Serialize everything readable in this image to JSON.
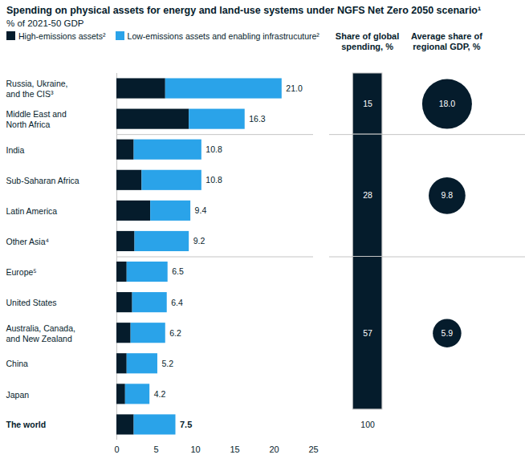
{
  "chart_data": {
    "type": "bar",
    "orientation": "horizontal",
    "stacked": true,
    "title": "Spending on physical assets for energy and land-use systems under NGFS Net Zero 2050 scenario¹",
    "subtitle": "% of 2021-50 GDP",
    "categories": [
      "Russia, Ukraine, and the CIS³",
      "Middle East and North Africa",
      "India",
      "Sub-Saharan Africa",
      "Latin America",
      "Other Asia⁴",
      "Europe⁵",
      "United States",
      "Australia, Canada, and New Zealand",
      "China",
      "Japan",
      "The world"
    ],
    "series": [
      {
        "name": "High-emissions assets²",
        "color": "#051c2c",
        "values": [
          6.2,
          9.2,
          2.2,
          3.2,
          4.3,
          2.3,
          1.3,
          2.0,
          1.8,
          1.3,
          1.1,
          2.2
        ]
      },
      {
        "name": "Low-emissions assets and enabling infrastrucuture²",
        "color": "#2aa3e9",
        "values": [
          14.8,
          7.1,
          8.6,
          7.6,
          5.1,
          6.9,
          5.2,
          4.4,
          4.4,
          3.9,
          3.1,
          5.3
        ]
      }
    ],
    "totals": [
      21.0,
      16.3,
      10.8,
      10.8,
      9.4,
      9.2,
      6.5,
      6.4,
      6.2,
      5.2,
      4.2,
      7.5
    ],
    "total_labels": [
      "21.0",
      "16.3",
      "10.8",
      "10.8",
      "9.4",
      "9.2",
      "6.5",
      "6.4",
      "6.2",
      "5.2",
      "4.2",
      "7.5"
    ],
    "xlim": [
      0,
      25
    ],
    "xticks": [
      0,
      5,
      10,
      15,
      20,
      25
    ],
    "grid": false,
    "legend": "top",
    "group_headers": {
      "share": "Share of global spending, %",
      "gdp": "Average share of regional GDP, %"
    },
    "groups": [
      {
        "members": [
          "Russia, Ukraine, and the CIS³",
          "Middle East and North Africa"
        ],
        "share_of_global_spending": 15,
        "average_share_of_regional_gdp": 18.0,
        "average_share_label": "18.0"
      },
      {
        "members": [
          "India",
          "Sub-Saharan Africa",
          "Latin America",
          "Other Asia⁴"
        ],
        "share_of_global_spending": 28,
        "average_share_of_regional_gdp": 9.8
      },
      {
        "members": [
          "Europe⁵",
          "United States",
          "Australia, Canada, and New Zealand",
          "China",
          "Japan"
        ],
        "share_of_global_spending": 57,
        "average_share_of_regional_gdp": 5.9
      }
    ],
    "total_share": 100
  }
}
